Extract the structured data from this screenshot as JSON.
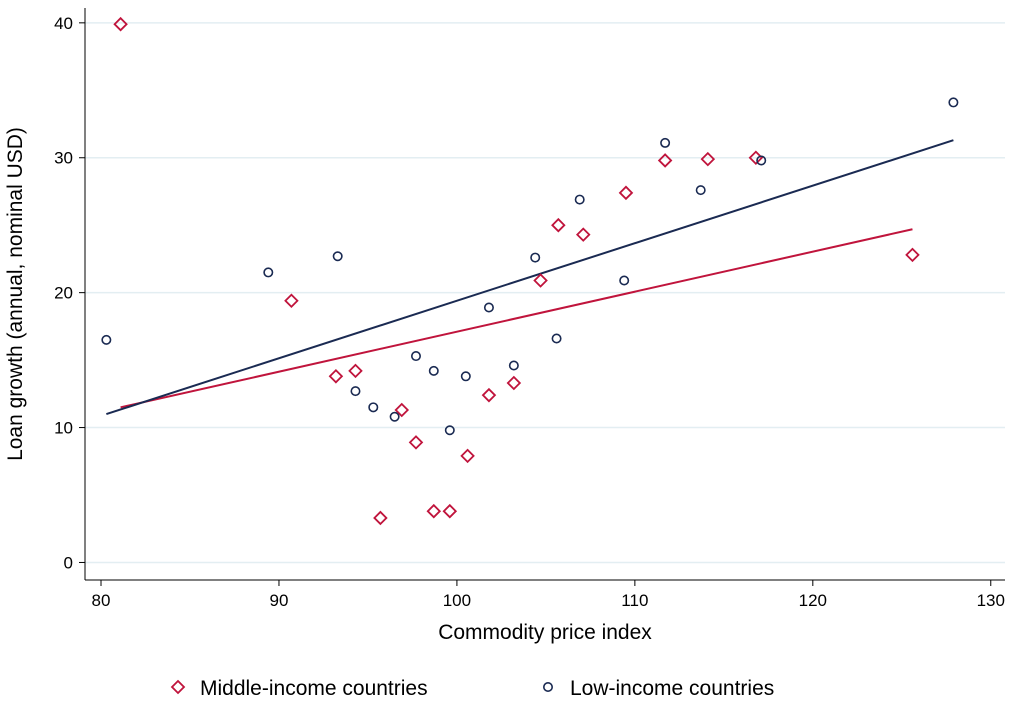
{
  "chart_data": {
    "type": "scatter",
    "x_label": "Commodity price index",
    "y_label": "Loan growth (annual, nominal USD)",
    "xlim": [
      79.1,
      130.8
    ],
    "ylim": [
      -1.3,
      41.1
    ],
    "xticks": [
      80,
      90,
      100,
      110,
      120,
      130
    ],
    "yticks": [
      0,
      10,
      20,
      30,
      40
    ],
    "grid": true,
    "legend": "bottom",
    "series": [
      {
        "name": "Middle-income countries",
        "color": "#c0143c",
        "marker": "diamond",
        "x": [
          81.1,
          90.7,
          93.2,
          94.3,
          95.7,
          96.9,
          97.7,
          98.7,
          99.6,
          100.6,
          101.8,
          103.2,
          104.7,
          105.7,
          107.1,
          109.5,
          111.7,
          114.1,
          116.8,
          125.6
        ],
        "values": [
          39.9,
          19.4,
          13.8,
          14.2,
          3.3,
          11.3,
          8.9,
          3.8,
          3.8,
          7.9,
          12.4,
          13.3,
          20.9,
          25.0,
          24.3,
          27.4,
          29.8,
          29.9,
          30.0,
          22.8
        ],
        "fit": {
          "x": [
            81.1,
            125.6
          ],
          "values": [
            11.5,
            24.7
          ]
        }
      },
      {
        "name": "Low-income countries",
        "color": "#1a2a52",
        "marker": "circle",
        "x": [
          80.3,
          89.4,
          93.3,
          94.3,
          95.3,
          96.5,
          97.7,
          98.7,
          99.6,
          100.5,
          101.8,
          103.2,
          104.4,
          105.6,
          106.9,
          109.4,
          111.7,
          113.7,
          117.1,
          127.9
        ],
        "values": [
          16.5,
          21.5,
          22.7,
          12.7,
          11.5,
          10.8,
          15.3,
          14.2,
          9.8,
          13.8,
          18.9,
          14.6,
          22.6,
          16.6,
          26.9,
          20.9,
          31.1,
          27.6,
          29.8,
          34.1
        ],
        "fit": {
          "x": [
            80.3,
            127.9
          ],
          "values": [
            11.0,
            31.3
          ]
        }
      }
    ]
  }
}
